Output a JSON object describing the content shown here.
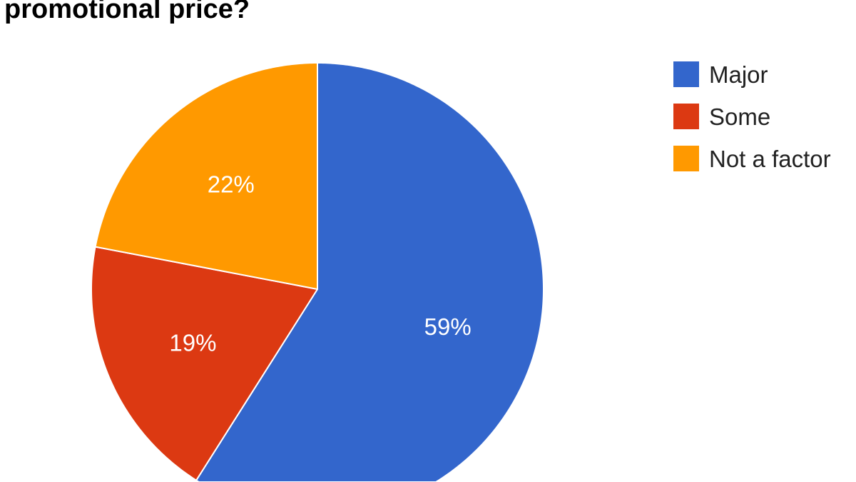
{
  "chart_data": {
    "type": "pie",
    "title": "promotional price?",
    "categories": [
      "Major",
      "Some",
      "Not a factor"
    ],
    "values": [
      59,
      19,
      22
    ],
    "labels": [
      "59%",
      "19%",
      "22%"
    ],
    "colors": [
      "#3366cc",
      "#dc3912",
      "#ff9900"
    ],
    "start_angle": "top, clockwise",
    "legend_position": "right"
  }
}
